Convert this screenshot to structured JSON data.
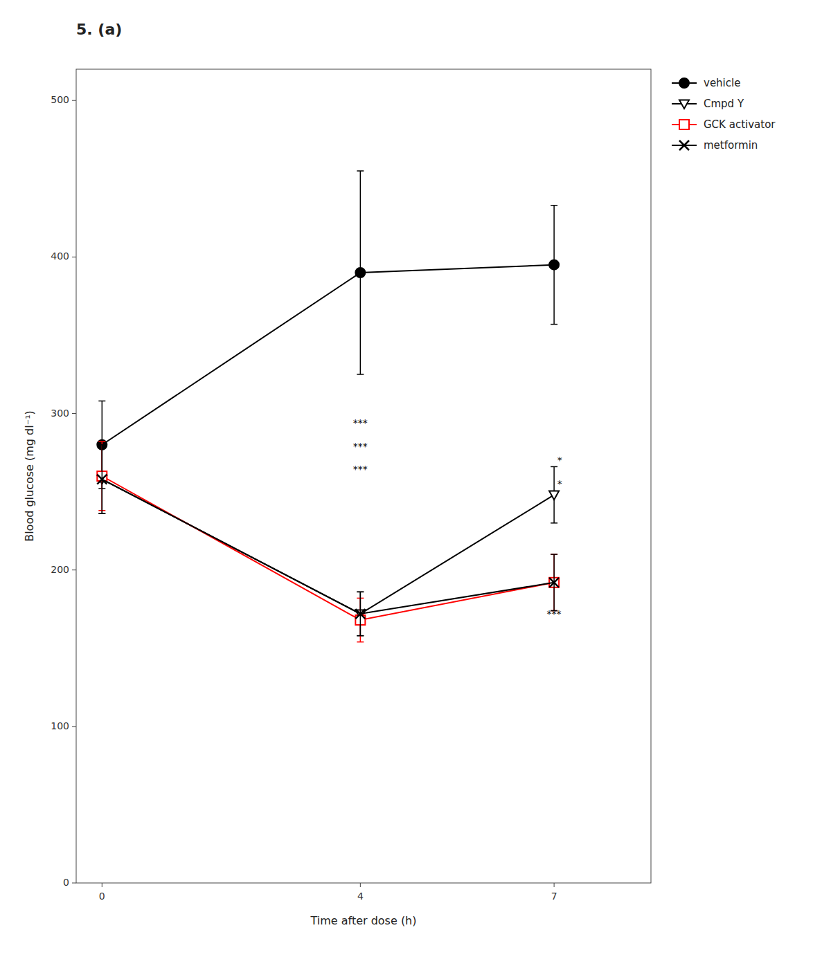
{
  "chart_data": {
    "type": "line",
    "title": "5. (a)",
    "x_label": "Time after dose (h)",
    "y_label": "Blood glucose (mg dl⁻¹)",
    "x": [
      0,
      4,
      7
    ],
    "series": [
      {
        "name": "vehicle",
        "color": "#000000",
        "marker": "circle",
        "line_style": "solid",
        "values": [
          280,
          390,
          395
        ],
        "errors": [
          28,
          65,
          38
        ]
      },
      {
        "name": "Cmpd Y",
        "color": "#000000",
        "marker": "triangle-down",
        "line_style": "solid",
        "values": [
          258,
          172,
          248
        ],
        "errors": [
          22,
          14,
          18
        ]
      },
      {
        "name": "GCK activator",
        "color": "#ff0000",
        "marker": "square",
        "line_style": "solid",
        "values": [
          260,
          168,
          192
        ],
        "errors": [
          22,
          14,
          18
        ]
      },
      {
        "name": "metformin",
        "color": "#000000",
        "marker": "x",
        "line_style": "solid",
        "values": [
          258,
          172,
          192
        ],
        "errors": [
          22,
          14,
          18
        ]
      }
    ],
    "xlim": [
      -0.4,
      8.5
    ],
    "xticks": [
      0,
      4,
      7
    ],
    "ylim": [
      0,
      520
    ],
    "yticks": [
      0,
      100,
      200,
      300,
      400,
      500
    ],
    "grid": false,
    "legend": "right",
    "annotations": [
      {
        "text": "***",
        "x": 4.0,
        "y": 292
      },
      {
        "text": "***",
        "x": 4.0,
        "y": 277
      },
      {
        "text": "***",
        "x": 4.0,
        "y": 262
      },
      {
        "text": "*",
        "x": 7.05,
        "y": 268
      },
      {
        "text": "*",
        "x": 7.05,
        "y": 253
      },
      {
        "text": "***",
        "x": 7.0,
        "y": 170
      }
    ]
  }
}
